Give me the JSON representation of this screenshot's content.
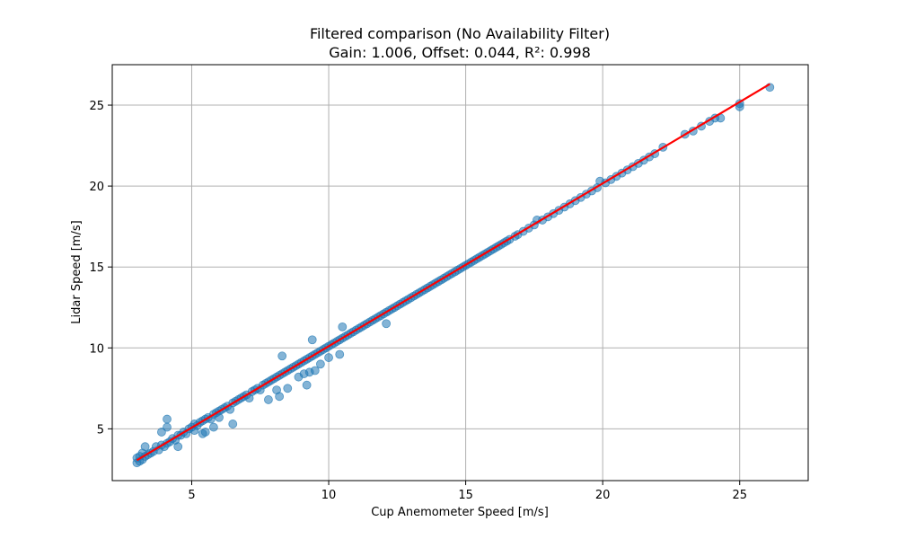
{
  "chart_data": {
    "type": "scatter",
    "title": "Filtered comparison (No Availability Filter)",
    "subtitle": "Gain: 1.006, Offset: 0.044, R²: 0.998",
    "xlabel": "Cup Anemometer Speed [m/s]",
    "ylabel": "Lidar Speed [m/s]",
    "xlim": [
      2.1,
      27.5
    ],
    "ylim": [
      1.8,
      27.5
    ],
    "xticks": [
      5,
      10,
      15,
      20,
      25
    ],
    "yticks": [
      5,
      10,
      15,
      20,
      25
    ],
    "grid": true,
    "point_color": "#1f77b4",
    "point_alpha": 0.55,
    "fit_line": {
      "gain": 1.006,
      "offset": 0.044,
      "x_range": [
        3.0,
        26.1
      ],
      "color": "#ff0000"
    },
    "points": [
      [
        3.0,
        2.9
      ],
      [
        3.0,
        3.2
      ],
      [
        3.1,
        3.0
      ],
      [
        3.1,
        3.3
      ],
      [
        3.2,
        3.1
      ],
      [
        3.2,
        3.5
      ],
      [
        3.3,
        3.3
      ],
      [
        3.3,
        3.9
      ],
      [
        3.4,
        3.4
      ],
      [
        3.5,
        3.5
      ],
      [
        3.6,
        3.6
      ],
      [
        3.7,
        3.9
      ],
      [
        3.8,
        3.7
      ],
      [
        3.9,
        4.8
      ],
      [
        3.9,
        4.0
      ],
      [
        4.0,
        3.9
      ],
      [
        4.1,
        4.1
      ],
      [
        4.1,
        5.1
      ],
      [
        4.1,
        5.6
      ],
      [
        4.2,
        4.2
      ],
      [
        4.3,
        4.4
      ],
      [
        4.4,
        4.3
      ],
      [
        4.5,
        4.6
      ],
      [
        4.5,
        3.9
      ],
      [
        4.6,
        4.6
      ],
      [
        4.7,
        4.8
      ],
      [
        4.8,
        4.7
      ],
      [
        4.9,
        5.0
      ],
      [
        5.0,
        5.1
      ],
      [
        5.1,
        4.9
      ],
      [
        5.1,
        5.3
      ],
      [
        5.2,
        5.2
      ],
      [
        5.3,
        5.4
      ],
      [
        5.4,
        4.7
      ],
      [
        5.4,
        5.5
      ],
      [
        5.5,
        5.6
      ],
      [
        5.5,
        4.8
      ],
      [
        5.6,
        5.7
      ],
      [
        5.7,
        5.6
      ],
      [
        5.8,
        5.9
      ],
      [
        5.8,
        5.1
      ],
      [
        5.9,
        6.0
      ],
      [
        6.0,
        6.1
      ],
      [
        6.0,
        5.7
      ],
      [
        6.1,
        6.2
      ],
      [
        6.2,
        6.3
      ],
      [
        6.3,
        6.4
      ],
      [
        6.4,
        6.2
      ],
      [
        6.5,
        6.6
      ],
      [
        6.5,
        5.3
      ],
      [
        6.6,
        6.7
      ],
      [
        6.7,
        6.8
      ],
      [
        6.8,
        6.9
      ],
      [
        6.9,
        7.0
      ],
      [
        7.0,
        7.1
      ],
      [
        7.1,
        6.9
      ],
      [
        7.2,
        7.3
      ],
      [
        7.3,
        7.4
      ],
      [
        7.4,
        7.5
      ],
      [
        7.5,
        7.4
      ],
      [
        7.6,
        7.7
      ],
      [
        7.7,
        7.8
      ],
      [
        7.8,
        6.8
      ],
      [
        7.8,
        7.9
      ],
      [
        7.9,
        8.0
      ],
      [
        8.0,
        8.1
      ],
      [
        8.1,
        8.2
      ],
      [
        8.1,
        7.4
      ],
      [
        8.2,
        7.0
      ],
      [
        8.2,
        8.3
      ],
      [
        8.3,
        8.4
      ],
      [
        8.3,
        9.5
      ],
      [
        8.4,
        8.5
      ],
      [
        8.5,
        8.6
      ],
      [
        8.5,
        7.5
      ],
      [
        8.6,
        8.7
      ],
      [
        8.7,
        8.8
      ],
      [
        8.8,
        8.9
      ],
      [
        8.9,
        9.0
      ],
      [
        8.9,
        8.2
      ],
      [
        9.0,
        9.1
      ],
      [
        9.1,
        9.2
      ],
      [
        9.1,
        8.4
      ],
      [
        9.2,
        9.3
      ],
      [
        9.2,
        7.7
      ],
      [
        9.3,
        9.4
      ],
      [
        9.3,
        8.5
      ],
      [
        9.4,
        9.5
      ],
      [
        9.4,
        10.5
      ],
      [
        9.5,
        9.6
      ],
      [
        9.5,
        8.6
      ],
      [
        9.6,
        9.7
      ],
      [
        9.7,
        9.8
      ],
      [
        9.7,
        9.0
      ],
      [
        9.8,
        9.9
      ],
      [
        9.9,
        10.0
      ],
      [
        10.0,
        10.1
      ],
      [
        10.0,
        9.4
      ],
      [
        10.1,
        10.2
      ],
      [
        10.2,
        10.3
      ],
      [
        10.3,
        10.4
      ],
      [
        10.4,
        10.5
      ],
      [
        10.4,
        9.6
      ],
      [
        10.5,
        11.3
      ],
      [
        10.5,
        10.6
      ],
      [
        10.6,
        10.7
      ],
      [
        10.7,
        10.8
      ],
      [
        10.8,
        10.9
      ],
      [
        10.9,
        11.0
      ],
      [
        11.0,
        11.1
      ],
      [
        11.1,
        11.2
      ],
      [
        11.2,
        11.3
      ],
      [
        11.3,
        11.4
      ],
      [
        11.4,
        11.5
      ],
      [
        11.5,
        11.6
      ],
      [
        11.6,
        11.7
      ],
      [
        11.7,
        11.8
      ],
      [
        11.8,
        11.9
      ],
      [
        11.9,
        12.0
      ],
      [
        12.0,
        12.1
      ],
      [
        12.1,
        11.5
      ],
      [
        12.1,
        12.2
      ],
      [
        12.2,
        12.3
      ],
      [
        12.3,
        12.4
      ],
      [
        12.4,
        12.5
      ],
      [
        12.5,
        12.6
      ],
      [
        12.6,
        12.7
      ],
      [
        12.7,
        12.8
      ],
      [
        12.8,
        12.9
      ],
      [
        12.9,
        13.0
      ],
      [
        13.0,
        13.1
      ],
      [
        13.1,
        13.2
      ],
      [
        13.2,
        13.3
      ],
      [
        13.3,
        13.4
      ],
      [
        13.4,
        13.5
      ],
      [
        13.5,
        13.6
      ],
      [
        13.6,
        13.7
      ],
      [
        13.7,
        13.8
      ],
      [
        13.8,
        13.9
      ],
      [
        13.9,
        14.0
      ],
      [
        14.0,
        14.1
      ],
      [
        14.1,
        14.2
      ],
      [
        14.2,
        14.3
      ],
      [
        14.3,
        14.4
      ],
      [
        14.4,
        14.5
      ],
      [
        14.5,
        14.6
      ],
      [
        14.6,
        14.7
      ],
      [
        14.7,
        14.8
      ],
      [
        14.8,
        14.9
      ],
      [
        14.9,
        15.0
      ],
      [
        15.0,
        15.1
      ],
      [
        15.1,
        15.2
      ],
      [
        15.2,
        15.3
      ],
      [
        15.3,
        15.4
      ],
      [
        15.4,
        15.5
      ],
      [
        15.5,
        15.6
      ],
      [
        15.6,
        15.7
      ],
      [
        15.7,
        15.8
      ],
      [
        15.8,
        15.9
      ],
      [
        15.9,
        16.0
      ],
      [
        16.0,
        16.1
      ],
      [
        16.1,
        16.2
      ],
      [
        16.2,
        16.3
      ],
      [
        16.3,
        16.4
      ],
      [
        16.4,
        16.5
      ],
      [
        16.5,
        16.6
      ],
      [
        16.6,
        16.7
      ],
      [
        16.8,
        16.9
      ],
      [
        16.9,
        17.0
      ],
      [
        17.1,
        17.2
      ],
      [
        17.3,
        17.4
      ],
      [
        17.5,
        17.6
      ],
      [
        17.6,
        17.9
      ],
      [
        17.8,
        17.9
      ],
      [
        18.0,
        18.1
      ],
      [
        18.2,
        18.3
      ],
      [
        18.4,
        18.5
      ],
      [
        18.6,
        18.7
      ],
      [
        18.8,
        18.9
      ],
      [
        19.0,
        19.1
      ],
      [
        19.2,
        19.3
      ],
      [
        19.4,
        19.5
      ],
      [
        19.6,
        19.7
      ],
      [
        19.8,
        19.9
      ],
      [
        19.9,
        20.3
      ],
      [
        20.1,
        20.2
      ],
      [
        20.3,
        20.4
      ],
      [
        20.5,
        20.6
      ],
      [
        20.7,
        20.8
      ],
      [
        20.9,
        21.0
      ],
      [
        21.1,
        21.2
      ],
      [
        21.3,
        21.4
      ],
      [
        21.5,
        21.6
      ],
      [
        21.7,
        21.8
      ],
      [
        21.9,
        22.0
      ],
      [
        22.2,
        22.4
      ],
      [
        23.0,
        23.2
      ],
      [
        23.3,
        23.4
      ],
      [
        23.6,
        23.7
      ],
      [
        23.9,
        24.0
      ],
      [
        24.1,
        24.2
      ],
      [
        24.3,
        24.2
      ],
      [
        25.0,
        24.9
      ],
      [
        25.0,
        25.1
      ],
      [
        26.1,
        26.1
      ]
    ]
  }
}
